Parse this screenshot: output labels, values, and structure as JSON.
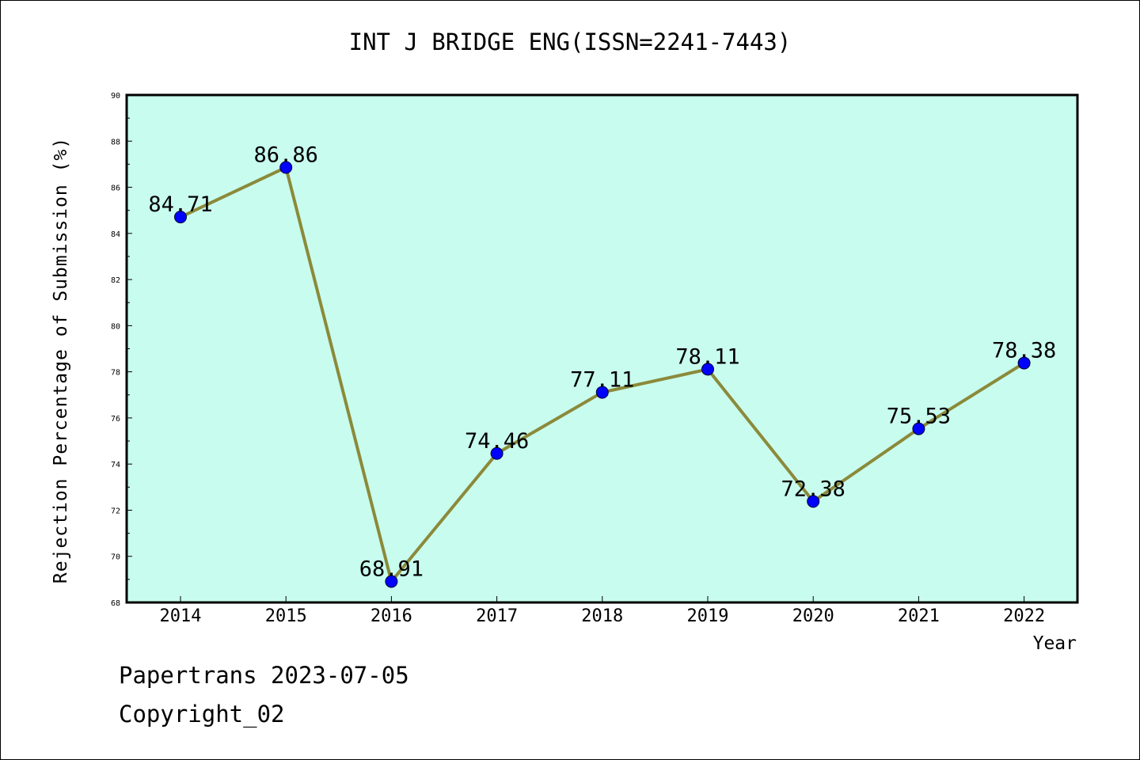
{
  "chart_data": {
    "type": "line",
    "title": "INT J BRIDGE ENG(ISSN=2241-7443)",
    "xlabel": "Year",
    "ylabel": "Rejection Percentage of Submission (%)",
    "categories": [
      "2014",
      "2015",
      "2016",
      "2017",
      "2018",
      "2019",
      "2020",
      "2021",
      "2022"
    ],
    "series": [
      {
        "values": [
          84.71,
          86.86,
          68.91,
          74.46,
          77.11,
          78.11,
          72.38,
          75.53,
          78.38
        ],
        "labels": [
          "84.71",
          "86.86",
          "68.91",
          "74.46",
          "77.11",
          "78.11",
          "72.38",
          "75.53",
          "78.38"
        ]
      }
    ],
    "ylim": [
      68,
      90
    ],
    "yticks": [
      "68",
      "70",
      "72",
      "74",
      "76",
      "78",
      "80",
      "82",
      "84",
      "86",
      "88",
      "90"
    ],
    "grid": false,
    "legend": "none",
    "colors": {
      "plot_background": "#c8fcee",
      "line": "#8b8a3a",
      "marker": "#0000ff"
    }
  },
  "footer": {
    "source": "Papertrans 2023-07-05",
    "copyright": "Copyright_02"
  }
}
